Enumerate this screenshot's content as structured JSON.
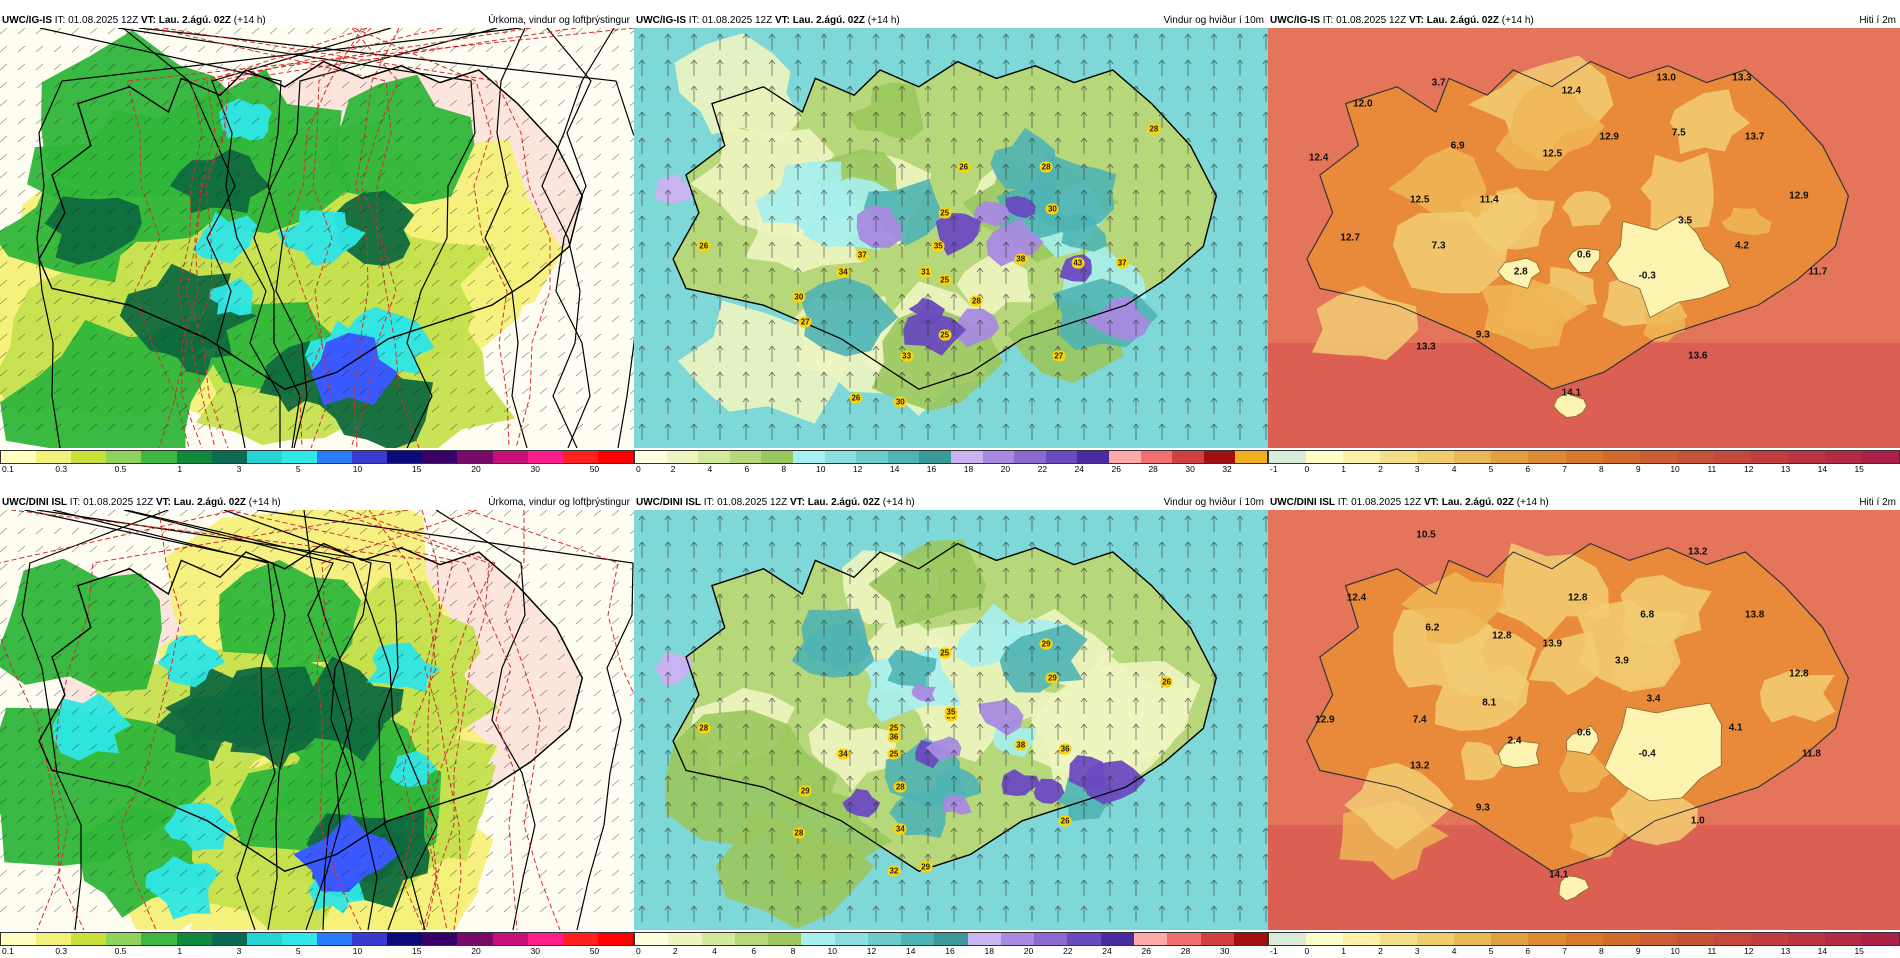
{
  "panels": [
    {
      "id": "p1",
      "model": "UWC/IG-IS",
      "it": "IT: 01.08.2025 12Z",
      "vt_label": "VT:",
      "vt": "Lau. 2.ágú. 02Z",
      "lead": "(+14 h)",
      "title": "Úrkoma, vindur og loftþrýstingur",
      "kind": "precip"
    },
    {
      "id": "p2",
      "model": "UWC/IG-IS",
      "it": "IT: 01.08.2025 12Z",
      "vt_label": "VT:",
      "vt": "Lau. 2.ágú. 02Z",
      "lead": "(+14 h)",
      "title": "Vindur og hviður í 10m",
      "kind": "wind"
    },
    {
      "id": "p3",
      "model": "UWC/IG-IS",
      "it": "IT: 01.08.2025 12Z",
      "vt_label": "VT:",
      "vt": "Lau. 2.ágú. 02Z",
      "lead": "(+14 h)",
      "title": "Hiti í 2m",
      "kind": "temp"
    },
    {
      "id": "p4",
      "model": "UWC/DINI ISL",
      "it": "IT: 01.08.2025 12Z",
      "vt_label": "VT:",
      "vt": "Lau. 2.ágú. 02Z",
      "lead": "(+14 h)",
      "title": "Úrkoma, vindur og loftþrýstingur",
      "kind": "precip"
    },
    {
      "id": "p5",
      "model": "UWC/DINI ISL",
      "it": "IT: 01.08.2025 12Z",
      "vt_label": "VT:",
      "vt": "Lau. 2.ágú. 02Z",
      "lead": "(+14 h)",
      "title": "Vindur og hviður í 10m",
      "kind": "wind"
    },
    {
      "id": "p6",
      "model": "UWC/DINI ISL",
      "it": "IT: 01.08.2025 12Z",
      "vt_label": "VT:",
      "vt": "Lau. 2.ágú. 02Z",
      "lead": "(+14 h)",
      "title": "Hiti í 2m",
      "kind": "temp"
    }
  ],
  "colorbars": {
    "precip": {
      "colors": [
        "#ffffc0",
        "#f2f27a",
        "#c9df3a",
        "#8fd35a",
        "#3fb83f",
        "#0f8a3a",
        "#0b6a52",
        "#25d3d3",
        "#2fe8e8",
        "#2b7bff",
        "#3a3ad0",
        "#0a0a7a",
        "#3a006a",
        "#7a0a6a",
        "#c8107a",
        "#ff1e8c",
        "#ff2020",
        "#ff0000"
      ],
      "ticks": [
        "0.1",
        "0.3",
        "0.5",
        "1",
        "3",
        "5",
        "10",
        "15",
        "20",
        "30",
        "50"
      ]
    },
    "wind": {
      "colors": [
        "#ffffe0",
        "#eef5c0",
        "#d2e89a",
        "#b6d87a",
        "#9ac85e",
        "#a6f0f0",
        "#8ae0e0",
        "#6ccccc",
        "#4fb4b4",
        "#3a9a9a",
        "#c8b4f0",
        "#a88ae0",
        "#8a6ad0",
        "#6a4ac0",
        "#4a2aa0",
        "#ffa8a8",
        "#f07070",
        "#d04040",
        "#a01010",
        "#f0b020"
      ],
      "ticks": [
        "0",
        "2",
        "4",
        "6",
        "8",
        "10",
        "12",
        "14",
        "16",
        "18",
        "20",
        "22",
        "24",
        "26",
        "28",
        "30",
        "32"
      ]
    },
    "wind2": {
      "colors": [
        "#ffffe0",
        "#eef5c0",
        "#d2e89a",
        "#b6d87a",
        "#9ac85e",
        "#a6f0f0",
        "#8ae0e0",
        "#6ccccc",
        "#4fb4b4",
        "#3a9a9a",
        "#c8b4f0",
        "#a88ae0",
        "#8a6ad0",
        "#6a4ac0",
        "#4a2aa0",
        "#ffa8a8",
        "#f07070",
        "#d04040",
        "#a01010"
      ],
      "ticks": [
        "0",
        "2",
        "4",
        "6",
        "8",
        "10",
        "12",
        "14",
        "16",
        "18",
        "20",
        "22",
        "24",
        "26",
        "28",
        "30"
      ]
    },
    "temp": {
      "colors": [
        "#d8ecd8",
        "#ffffc8",
        "#fbf2a8",
        "#f5e08a",
        "#efcc6c",
        "#e8b854",
        "#e2a040",
        "#de8a32",
        "#d8782a",
        "#d26a2c",
        "#cc5c32",
        "#c85238",
        "#c4483c",
        "#c03e40",
        "#bc3442",
        "#b42a44",
        "#aa2046"
      ],
      "ticks": [
        "-1",
        "0",
        "1",
        "2",
        "3",
        "4",
        "5",
        "6",
        "7",
        "8",
        "9",
        "10",
        "11",
        "12",
        "13",
        "14",
        "15"
      ]
    }
  },
  "temp_labels": {
    "p3": [
      "3.7",
      "12.4",
      "13.0",
      "13.3",
      "12.0",
      "6.9",
      "12.5",
      "12.9",
      "7.5",
      "13.7",
      "12.4",
      "11.4",
      "12.9",
      "12.5",
      "3.5",
      "12.7",
      "7.3",
      "2.8",
      "0.6",
      "4.2",
      "11.7",
      "-0.3",
      "9.3",
      "13.3",
      "13.6",
      "14.1"
    ],
    "p6": [
      "10.5",
      "13.2",
      "12.4",
      "6.2",
      "12.8",
      "12.8",
      "6.8",
      "13.8",
      "13.9",
      "3.9",
      "12.8",
      "8.1",
      "3.4",
      "12.9",
      "7.4",
      "2.4",
      "0.6",
      "4.1",
      "11.8",
      "-0.4",
      "13.2",
      "9.3",
      "1.0",
      "14.1"
    ]
  },
  "gust_labels": {
    "p2": [
      "28",
      "26",
      "28",
      "30",
      "25",
      "26",
      "37",
      "35",
      "34",
      "31",
      "25",
      "38",
      "43",
      "37",
      "30",
      "28",
      "27",
      "25",
      "33",
      "27",
      "26",
      "30"
    ],
    "p5": [
      "29",
      "25",
      "35",
      "29",
      "26",
      "28",
      "25",
      "36",
      "34",
      "35",
      "38",
      "36",
      "29",
      "28",
      "25",
      "28",
      "26",
      "34",
      "32",
      "29"
    ]
  }
}
